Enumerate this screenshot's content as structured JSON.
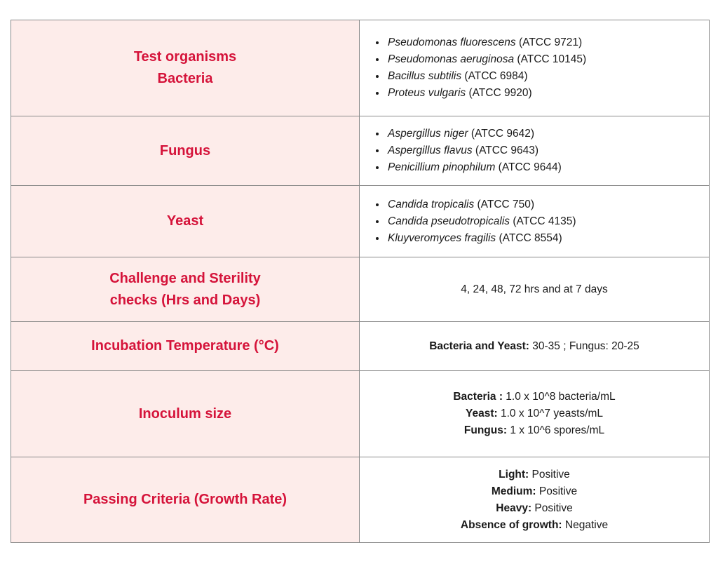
{
  "accent_color": "#d5133a",
  "label_background": "#fdecea",
  "rows": {
    "test_organisms": {
      "label_line1": "Test organisms",
      "label_line2": "Bacteria",
      "items": [
        {
          "species": "Pseudomonas fluorescens",
          "strain": " (ATCC 9721)"
        },
        {
          "species": "Pseudomonas aeruginosa",
          "strain": " (ATCC 10145)"
        },
        {
          "species": "Bacillus subtilis",
          "strain": " (ATCC 6984)"
        },
        {
          "species": "Proteus vulgaris",
          "strain": " (ATCC 9920)"
        }
      ]
    },
    "fungus": {
      "label": "Fungus",
      "items": [
        {
          "species": "Aspergillus niger",
          "strain": " (ATCC 9642)"
        },
        {
          "species": "Aspergillus flavus",
          "strain": " (ATCC 9643)"
        },
        {
          "species": "Penicillium pinophilum",
          "strain": " (ATCC 9644)"
        }
      ]
    },
    "yeast": {
      "label": "Yeast",
      "items": [
        {
          "species": "Candida tropicalis",
          "strain": " (ATCC 750)"
        },
        {
          "species": "Candida pseudotropicalis",
          "strain": " (ATCC 4135)"
        },
        {
          "species": "Kluyveromyces fragilis",
          "strain": " (ATCC 8554)"
        }
      ]
    },
    "challenge": {
      "label_line1": "Challenge and Sterility",
      "label_line2": "checks (Hrs and Days)",
      "value": "4, 24, 48, 72 hrs and at 7 days"
    },
    "incubation": {
      "label": "Incubation Temperature (°C)",
      "bold": "Bacteria and Yeast:",
      "rest": " 30-35 ; Fungus: 20-25"
    },
    "inoculum": {
      "label": "Inoculum size",
      "lines": [
        {
          "bold": "Bacteria :",
          "rest": " 1.0 x 10^8 bacteria/mL"
        },
        {
          "bold": "Yeast:",
          "rest": " 1.0 x 10^7 yeasts/mL"
        },
        {
          "bold": "Fungus:",
          "rest": " 1 x 10^6 spores/mL"
        }
      ]
    },
    "passing": {
      "label": "Passing Criteria (Growth Rate)",
      "lines": [
        {
          "bold": "Light:",
          "rest": " Positive"
        },
        {
          "bold": "Medium:",
          "rest": " Positive"
        },
        {
          "bold": "Heavy:",
          "rest": " Positive"
        },
        {
          "bold": "Absence of growth:",
          "rest": " Negative"
        }
      ]
    }
  }
}
